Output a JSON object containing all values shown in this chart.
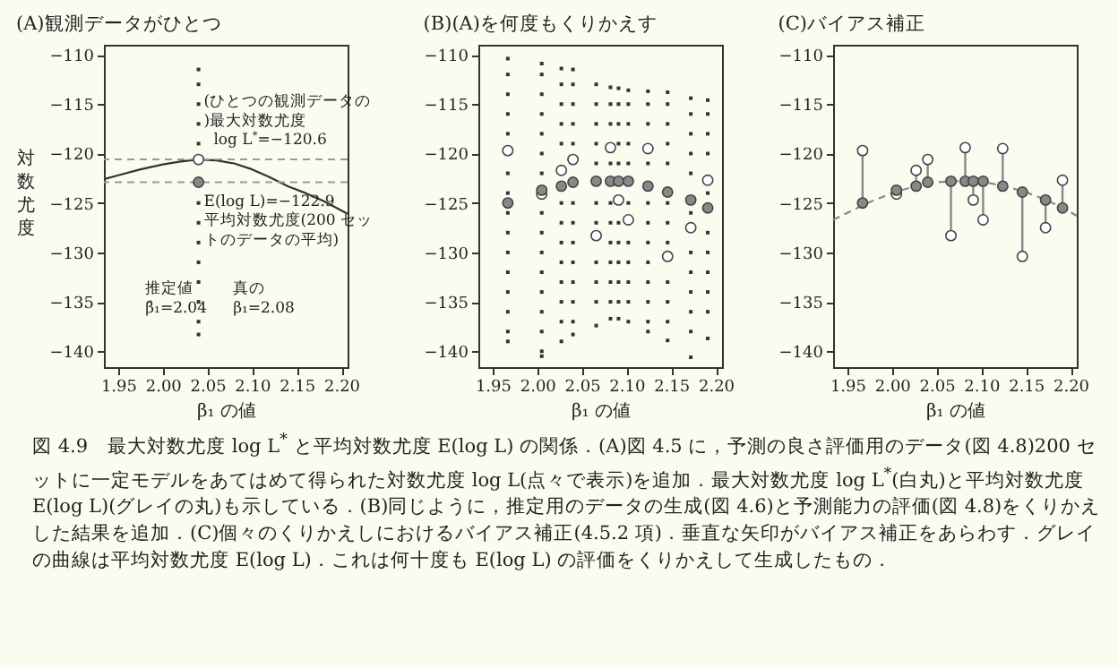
{
  "chart_data": [
    {
      "type": "line",
      "title": "(A)観測データがひとつ",
      "xlabel": "β₁ の値",
      "ylabel": "対数尤度",
      "xlim": [
        1.934,
        2.207
      ],
      "ylim": [
        -141.6,
        -109.0
      ],
      "xticks": [
        1.95,
        {
          "value": 2,
          "label": "2.00"
        },
        2.05,
        {
          "value": 2.1,
          "label": "2.10"
        },
        2.15,
        {
          "value": 2.2,
          "label": "2.20"
        }
      ],
      "yticks": [
        -140,
        -135,
        -130,
        -125,
        -120,
        -115,
        -110
      ],
      "ref_lines": [
        {
          "axis": "y",
          "value": -120.6,
          "color": "#999999",
          "line_style": "dashed"
        },
        {
          "axis": "y",
          "value": -122.9,
          "color": "#999999",
          "line_style": "dashed"
        }
      ],
      "series": [
        {
          "type": "line",
          "color": "#333333",
          "x": [
            1.934,
            1.95,
            1.975,
            2.0,
            2.02,
            2.04,
            2.06,
            2.08,
            2.1,
            2.12,
            2.14,
            2.16,
            2.18,
            2.207
          ],
          "values": [
            -122.6,
            -122.2,
            -121.6,
            -121.1,
            -120.8,
            -120.6,
            -120.7,
            -121.0,
            -121.6,
            -122.4,
            -123.3,
            -124.0,
            -124.8,
            -126.1
          ]
        },
        {
          "type": "scatter",
          "marker": "square",
          "color": "#333333",
          "x": [
            2.04,
            2.04,
            2.04,
            2.04,
            2.04,
            2.04,
            2.04,
            2.04,
            2.04,
            2.04,
            2.04,
            2.04,
            2.04
          ],
          "values": [
            -111.5,
            -113,
            -115,
            -117,
            -119,
            -125,
            -127,
            -129,
            -131,
            -133,
            -135,
            -137,
            -138.3
          ]
        },
        {
          "type": "scatter",
          "marker": "circle",
          "color": "#ffffff",
          "x": [
            2.04
          ],
          "values": [
            -120.6
          ]
        },
        {
          "type": "scatter",
          "marker": "circle",
          "color": "#888888",
          "x": [
            2.04
          ],
          "values": [
            -122.9
          ]
        }
      ],
      "annotations": [
        "(ひとつの観測データの)最大対数尤度",
        "log L$^{*}$=−120.6",
        "E(log L)=−122.9",
        "平均対数尤度(200 セットのデータの平均)",
        "推定値β̂₁=2.04",
        "真のβ₁=2.08"
      ]
    },
    {
      "type": "scatter",
      "title": "(B)(A)を何度もくりかえす",
      "xlabel": "β₁ の値",
      "xlim": [
        1.934,
        2.207
      ],
      "ylim": [
        -141.6,
        -109.0
      ],
      "xticks": [
        1.95,
        {
          "value": 2,
          "label": "2.00"
        },
        2.05,
        {
          "value": 2.1,
          "label": "2.10"
        },
        2.15,
        {
          "value": 2.2,
          "label": "2.20"
        }
      ],
      "yticks": [
        -140,
        -135,
        -130,
        -125,
        -120,
        -115,
        -110
      ],
      "series": [
        {
          "marker": "square",
          "color": "#333333",
          "x": [
            1.967,
            1.967,
            1.967,
            1.967,
            1.967,
            1.967,
            1.967,
            1.967,
            1.967,
            1.967,
            1.967,
            1.967,
            1.967,
            1.967,
            1.967
          ],
          "values": [
            -110.4,
            -112,
            -114,
            -116,
            -118,
            -122,
            -124,
            -126,
            -128,
            -130,
            -132,
            -134,
            -136,
            -138,
            -139.0
          ]
        },
        {
          "marker": "square",
          "color": "#333333",
          "x": [
            2.005,
            2.005,
            2.005,
            2.005,
            2.005,
            2.005,
            2.005,
            2.005,
            2.005,
            2.005,
            2.005,
            2.005,
            2.005,
            2.005,
            2.005,
            2.005
          ],
          "values": [
            -110.9,
            -112,
            -114,
            -116,
            -118,
            -120,
            -122,
            -126,
            -128,
            -130,
            -132,
            -134,
            -136,
            -138,
            -140,
            -140.5
          ]
        },
        {
          "marker": "square",
          "color": "#333333",
          "x": [
            2.027,
            2.027,
            2.027,
            2.027,
            2.027,
            2.027,
            2.027,
            2.027,
            2.027,
            2.027,
            2.027,
            2.027,
            2.027
          ],
          "values": [
            -111.4,
            -113,
            -115,
            -117,
            -119,
            -125,
            -127,
            -129,
            -131,
            -133,
            -135,
            -137,
            -139.0
          ]
        },
        {
          "marker": "square",
          "color": "#333333",
          "x": [
            2.04,
            2.04,
            2.04,
            2.04,
            2.04,
            2.04,
            2.04,
            2.04,
            2.04,
            2.04,
            2.04,
            2.04,
            2.04
          ],
          "values": [
            -111.5,
            -113,
            -115,
            -117,
            -119,
            -125,
            -127,
            -129,
            -131,
            -133,
            -135,
            -137,
            -138.3
          ]
        },
        {
          "marker": "square",
          "color": "#333333",
          "x": [
            2.066,
            2.066,
            2.066,
            2.066,
            2.066,
            2.066,
            2.066,
            2.066,
            2.066,
            2.066,
            2.066
          ],
          "values": [
            -113.0,
            -115,
            -117,
            -119,
            -121,
            -125,
            -127,
            -131,
            -133,
            -135,
            -137.4
          ]
        },
        {
          "marker": "square",
          "color": "#333333",
          "x": [
            2.082,
            2.082,
            2.082,
            2.082,
            2.082,
            2.082,
            2.082,
            2.082,
            2.082,
            2.082,
            2.082
          ],
          "values": [
            -113.3,
            -115,
            -117,
            -121,
            -125,
            -127,
            -129,
            -131,
            -133,
            -135,
            -136.7
          ]
        },
        {
          "marker": "square",
          "color": "#333333",
          "x": [
            2.091,
            2.091,
            2.091,
            2.091,
            2.091,
            2.091,
            2.091,
            2.091,
            2.091,
            2.091,
            2.091
          ],
          "values": [
            -113.4,
            -115,
            -117,
            -119,
            -121,
            -127,
            -129,
            -131,
            -133,
            -135,
            -136.7
          ]
        },
        {
          "marker": "square",
          "color": "#333333",
          "x": [
            2.102,
            2.102,
            2.102,
            2.102,
            2.102,
            2.102,
            2.102,
            2.102,
            2.102,
            2.102,
            2.102
          ],
          "values": [
            -113.6,
            -115,
            -117,
            -119,
            -121,
            -125,
            -129,
            -131,
            -133,
            -135,
            -137.0
          ]
        },
        {
          "marker": "square",
          "color": "#333333",
          "x": [
            2.124,
            2.124,
            2.124,
            2.124,
            2.124,
            2.124,
            2.124,
            2.124,
            2.124,
            2.124,
            2.124,
            2.124
          ],
          "values": [
            -113.7,
            -115,
            -117,
            -121,
            -125,
            -127,
            -129,
            -131,
            -133,
            -135,
            -137,
            -138.0
          ]
        },
        {
          "marker": "square",
          "color": "#333333",
          "x": [
            2.146,
            2.146,
            2.146,
            2.146,
            2.146,
            2.146,
            2.146,
            2.146,
            2.146,
            2.146,
            2.146,
            2.146
          ],
          "values": [
            -113.8,
            -115,
            -117,
            -119,
            -121,
            -125,
            -127,
            -129,
            -133,
            -135,
            -137,
            -138.9
          ]
        },
        {
          "marker": "square",
          "color": "#333333",
          "x": [
            2.172,
            2.172,
            2.172,
            2.172,
            2.172,
            2.172,
            2.172,
            2.172,
            2.172,
            2.172,
            2.172,
            2.172
          ],
          "values": [
            -114.4,
            -116,
            -118,
            -120,
            -122,
            -126,
            -130,
            -132,
            -134,
            -136,
            -138,
            -140.6
          ]
        },
        {
          "marker": "square",
          "color": "#333333",
          "x": [
            2.191,
            2.191,
            2.191,
            2.191,
            2.191,
            2.191,
            2.191,
            2.191,
            2.191,
            2.191,
            2.191
          ],
          "values": [
            -114.6,
            -116,
            -118,
            -120,
            -124,
            -128,
            -130,
            -132,
            -134,
            -136,
            -138.7
          ]
        },
        {
          "marker": "circle",
          "color": "#ffffff",
          "x": [
            1.967,
            2.005,
            2.027,
            2.04,
            2.066,
            2.082,
            2.091,
            2.102,
            2.124,
            2.146,
            2.172,
            2.191
          ],
          "values": [
            -119.7,
            -124.1,
            -121.7,
            -120.6,
            -128.3,
            -119.4,
            -124.7,
            -126.7,
            -119.5,
            -130.4,
            -127.5,
            -122.7
          ]
        },
        {
          "marker": "circle",
          "color": "#888888",
          "x": [
            1.967,
            2.005,
            2.027,
            2.04,
            2.066,
            2.082,
            2.091,
            2.102,
            2.124,
            2.146,
            2.172,
            2.191
          ],
          "values": [
            -125.0,
            -123.7,
            -123.3,
            -122.9,
            -122.8,
            -122.8,
            -122.8,
            -122.8,
            -123.3,
            -123.9,
            -124.7,
            -125.5
          ]
        }
      ]
    },
    {
      "type": "scatter",
      "title": "(C)バイアス補正",
      "xlabel": "β₁ の値",
      "xlim": [
        1.934,
        2.207
      ],
      "ylim": [
        -141.6,
        -109.0
      ],
      "xticks": [
        1.95,
        {
          "value": 2,
          "label": "2.00"
        },
        2.05,
        {
          "value": 2.1,
          "label": "2.10"
        },
        2.15,
        {
          "value": 2.2,
          "label": "2.20"
        }
      ],
      "yticks": [
        -140,
        -135,
        -130,
        -125,
        -120,
        -115,
        -110
      ],
      "series": [
        {
          "type": "line",
          "line_style": "dashed",
          "color": "#888888",
          "x": [
            1.934,
            1.95,
            1.97,
            2.0,
            2.03,
            2.05,
            2.07,
            2.09,
            2.11,
            2.13,
            2.15,
            2.17,
            2.19,
            2.207
          ],
          "values": [
            -126.7,
            -126.0,
            -125.1,
            -124.0,
            -123.2,
            -122.9,
            -122.8,
            -122.8,
            -123.0,
            -123.4,
            -123.9,
            -124.6,
            -125.4,
            -126.3
          ]
        },
        {
          "marker": "circle",
          "color": "#ffffff",
          "x": [
            1.967,
            2.005,
            2.027,
            2.04,
            2.066,
            2.082,
            2.091,
            2.102,
            2.124,
            2.146,
            2.172,
            2.191
          ],
          "values": [
            -119.7,
            -124.1,
            -121.7,
            -120.6,
            -128.3,
            -119.4,
            -124.7,
            -126.7,
            -119.5,
            -130.4,
            -127.5,
            -122.7
          ]
        },
        {
          "marker": "circle",
          "color": "#888888",
          "x": [
            1.967,
            2.005,
            2.027,
            2.04,
            2.066,
            2.082,
            2.091,
            2.102,
            2.124,
            2.146,
            2.172,
            2.191
          ],
          "values": [
            -125.0,
            -123.7,
            -123.3,
            -122.9,
            -122.8,
            -122.8,
            -122.8,
            -122.8,
            -123.3,
            -123.9,
            -124.7,
            -125.5
          ],
          "errors": [
            [
              -125.0,
              -119.7
            ],
            [
              -124.1,
              -123.7
            ],
            [
              -123.3,
              -121.7
            ],
            [
              -122.9,
              -120.6
            ],
            [
              -128.3,
              -122.8
            ],
            [
              -122.8,
              -119.4
            ],
            [
              -124.7,
              -122.8
            ],
            [
              -126.7,
              -122.8
            ],
            [
              -123.3,
              -119.5
            ],
            [
              -130.4,
              -123.9
            ],
            [
              -127.5,
              -124.7
            ],
            [
              -125.5,
              -122.7
            ]
          ]
        }
      ],
      "annotations": [
        "図 4.9　最大対数尤度 log L$^{*}$ と平均対数尤度 E(log L) の関係．(A)図 4.5 に，予測の良さ評価用のデータ(図 4.8)200 セットに一定モデルをあてはめて得られた対数尤度 log L(点々で表示)を追加．最大対数尤度 log L$^{*}$(白丸)と平均対数尤度 E(log L)(グレイの丸)も示している．(B)同じように，推定用のデータの生成(図 4.6)と予測能力の評価(図 4.8)をくりかえした結果を追加．(C)個々のくりかえしにおけるバイアス補正(4.5.2 項)．垂直な矢印がバイアス補正をあらわす．グレイの曲線は平均対数尤度 E(log L)．これは何十度も E(log L) の評価をくりかえして生成したもの．"
      ]
    }
  ]
}
